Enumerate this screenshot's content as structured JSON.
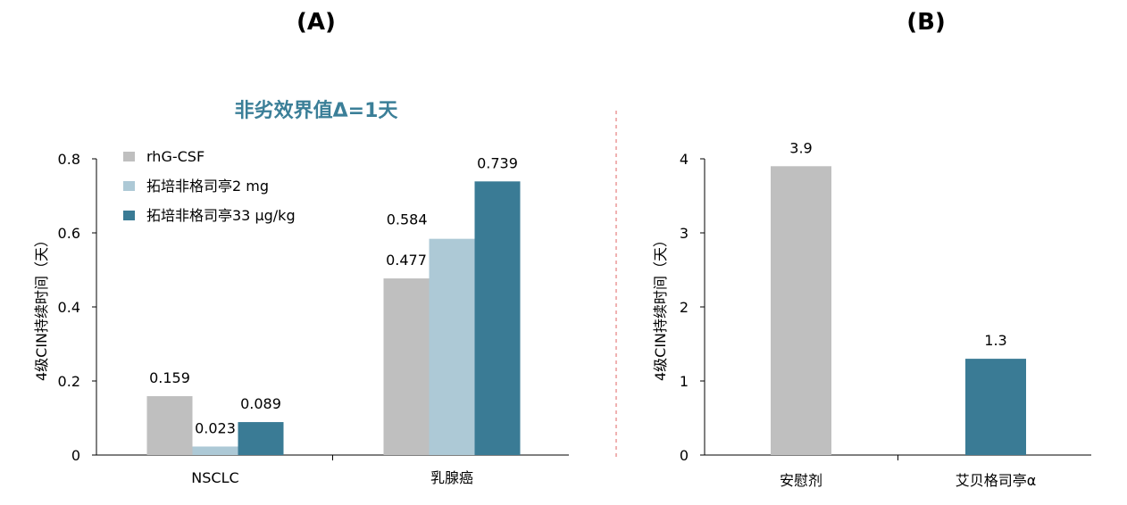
{
  "colors": {
    "gray": "#bfbfbf",
    "light_blue": "#adc9d6",
    "teal": "#3a7b95",
    "note_color": "#3b7f98",
    "divider": "#e06666"
  },
  "chart_data": [
    {
      "type": "bar",
      "panel_label": "(A)",
      "annotation": "非劣效界值Δ=1天",
      "ylabel": "4级CIN持续时间（天）",
      "categories": [
        "NSCLC",
        "乳腺癌"
      ],
      "yticks": [
        "0",
        "0.2",
        "0.4",
        "0.6",
        "0.8"
      ],
      "ylim": [
        0,
        0.8
      ],
      "legend_position": "top-left",
      "series": [
        {
          "name": "rhG-CSF",
          "color": "#bfbfbf",
          "values": [
            0.159,
            0.477
          ],
          "labels": [
            "0.159",
            "0.477"
          ]
        },
        {
          "name": "拓培非格司亭2 mg",
          "color": "#adc9d6",
          "values": [
            0.023,
            0.584
          ],
          "labels": [
            "0.023",
            "0.584"
          ]
        },
        {
          "name": "拓培非格司亭33 μg/kg",
          "color": "#3a7b95",
          "values": [
            0.089,
            0.739
          ],
          "labels": [
            "0.089",
            "0.739"
          ]
        }
      ]
    },
    {
      "type": "bar",
      "panel_label": "(B)",
      "ylabel": "4级CIN持续时间（天）",
      "categories": [
        "安慰剂",
        "艾贝格司亭α"
      ],
      "yticks": [
        "0",
        "1",
        "2",
        "3",
        "4"
      ],
      "ylim": [
        0,
        4
      ],
      "values": [
        3.9,
        1.3
      ],
      "labels": [
        "3.9",
        "1.3"
      ],
      "colors": [
        "#bfbfbf",
        "#3a7b95"
      ]
    }
  ]
}
